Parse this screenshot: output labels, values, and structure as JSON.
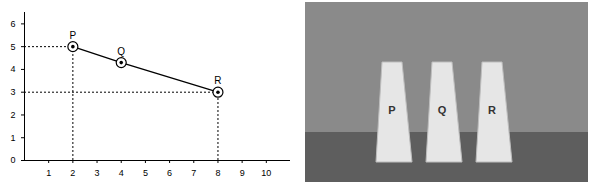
{
  "chart_data": {
    "type": "line",
    "x": [
      2,
      4,
      8
    ],
    "values": [
      5,
      4.3,
      3
    ],
    "point_labels": [
      "P",
      "Q",
      "R"
    ],
    "guide_lines": [
      "P",
      "R"
    ],
    "xlim": [
      0,
      11
    ],
    "xticks": [
      1,
      2,
      3,
      4,
      5,
      6,
      7,
      8,
      9,
      10
    ],
    "ylim": [
      0,
      6.5
    ],
    "yticks": [
      0,
      1,
      2,
      3,
      4,
      5,
      6
    ],
    "color": "#000000",
    "marker": "circle",
    "grid": false
  }
}
